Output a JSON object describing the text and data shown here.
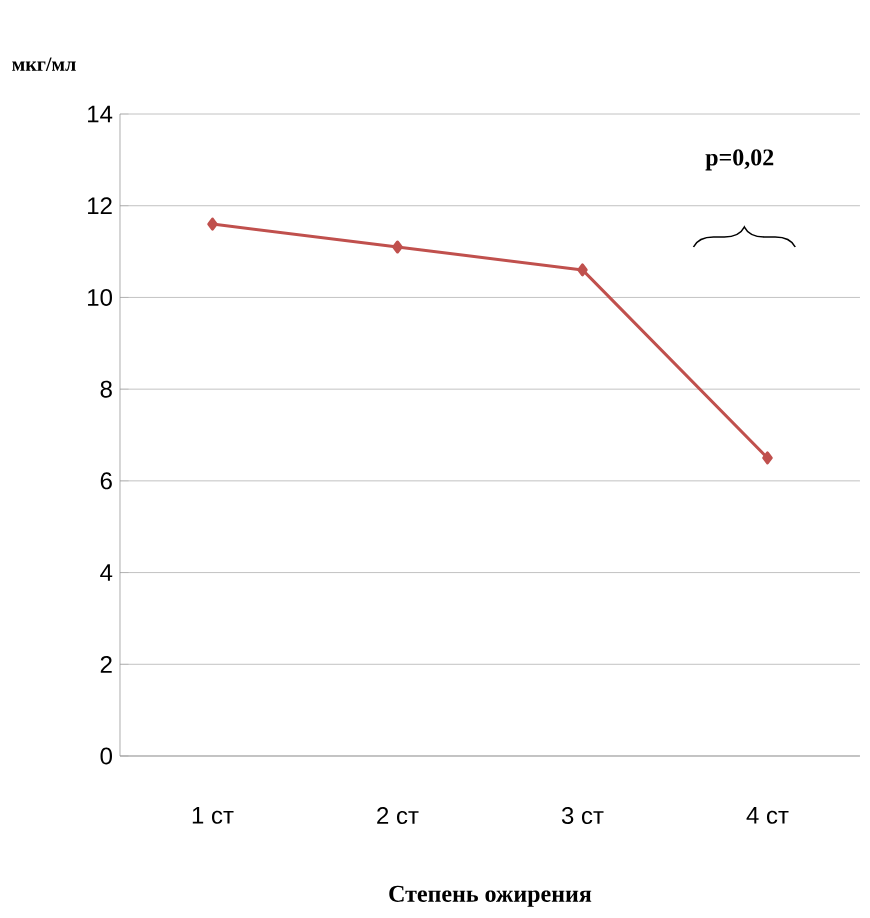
{
  "chart_data": {
    "type": "line",
    "xlabel": "Степень ожирения",
    "ylabel": "мкг/мл",
    "categories": [
      "1 ст",
      "2 ст",
      "3 ст",
      "4 ст"
    ],
    "series": [
      {
        "color": "#c0504d",
        "values": [
          11.6,
          11.1,
          10.6,
          6.5
        ]
      }
    ],
    "ylim": [
      0,
      14
    ],
    "yticks": [
      0,
      2,
      4,
      6,
      8,
      10,
      12,
      14
    ],
    "grid": "y",
    "marker": "diamond",
    "line_style": "solid",
    "annotations": [
      "p=0,02"
    ]
  }
}
